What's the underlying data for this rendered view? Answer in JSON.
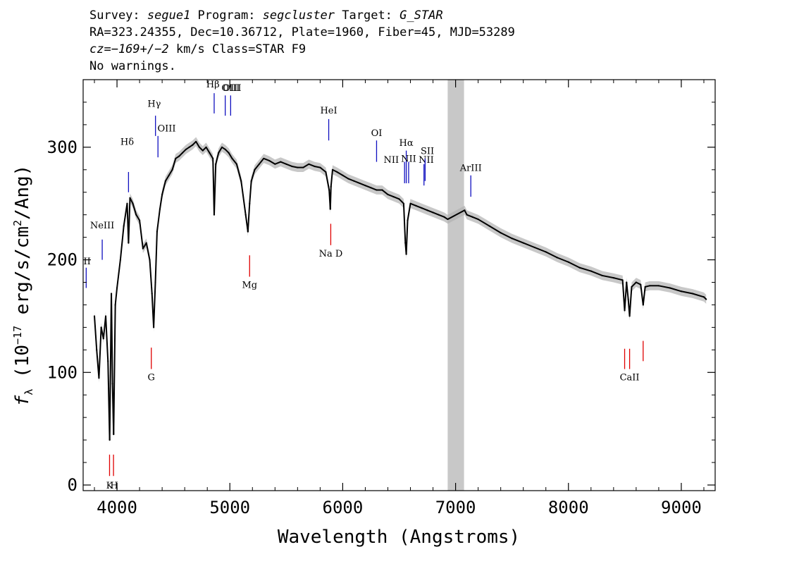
{
  "header": {
    "line1": {
      "survey_label": "Survey: ",
      "survey": "segue1",
      "program_label": " Program: ",
      "program": "segcluster",
      "target_label": " Target: ",
      "target": "G_STAR"
    },
    "line2": "RA=323.24355, Dec=10.36712, Plate=1960, Fiber=45, MJD=53289",
    "line3": {
      "cz": "cz=−169+/−2",
      "rest": " km/s Class=STAR F9"
    },
    "line4": "No warnings."
  },
  "chart_data": {
    "type": "line",
    "title": "",
    "xlabel": "Wavelength (Angstroms)",
    "ylabel": "f_λ (10^-17 erg/s/cm^2/Ang)",
    "ylabel_parts": {
      "f": "f",
      "sub": "λ",
      "pre": " (10",
      "exp1": "−17",
      "mid": " erg/s/cm",
      "exp2": "2",
      "post": "/Ang)"
    },
    "xlim": [
      3700,
      9300
    ],
    "ylim": [
      -5,
      360
    ],
    "xticks": [
      4000,
      5000,
      6000,
      7000,
      8000,
      9000
    ],
    "yticks": [
      0,
      100,
      200,
      300
    ],
    "masked_region": [
      6930,
      7075
    ],
    "colors": {
      "flux": "#000000",
      "error": "#b0b0b0",
      "mask": "#c8c8c8",
      "emission": "#1010c0",
      "absorption": "#e00000"
    },
    "series": [
      {
        "x": [
          3800,
          3820,
          3840,
          3860,
          3880,
          3900,
          3920,
          3935,
          3950,
          3960,
          3970,
          3985,
          4000,
          4030,
          4060,
          4090,
          4102,
          4115,
          4140,
          4170,
          4200,
          4230,
          4260,
          4290,
          4310,
          4325,
          4340,
          4355,
          4380,
          4400,
          4430,
          4460,
          4490,
          4520,
          4550,
          4580,
          4610,
          4640,
          4670,
          4700,
          4730,
          4760,
          4790,
          4820,
          4850,
          4861,
          4875,
          4900,
          4930,
          4960,
          4990,
          5020,
          5060,
          5100,
          5140,
          5160,
          5175,
          5190,
          5220,
          5260,
          5300,
          5350,
          5400,
          5450,
          5500,
          5550,
          5600,
          5650,
          5700,
          5750,
          5800,
          5850,
          5880,
          5890,
          5896,
          5910,
          5950,
          6000,
          6050,
          6100,
          6150,
          6200,
          6250,
          6300,
          6350,
          6400,
          6450,
          6500,
          6540,
          6555,
          6563,
          6575,
          6600,
          6650,
          6700,
          6750,
          6800,
          6850,
          6900,
          6930,
          7080,
          7100,
          7150,
          7200,
          7300,
          7400,
          7500,
          7600,
          7700,
          7800,
          7900,
          8000,
          8100,
          8200,
          8300,
          8400,
          8480,
          8498,
          8515,
          8530,
          8542,
          8560,
          8600,
          8640,
          8662,
          8680,
          8720,
          8800,
          8900,
          9000,
          9100,
          9200,
          9220
        ],
        "y": [
          150,
          120,
          95,
          140,
          130,
          150,
          110,
          40,
          170,
          90,
          45,
          160,
          175,
          200,
          230,
          250,
          215,
          255,
          250,
          240,
          235,
          210,
          215,
          200,
          170,
          140,
          180,
          225,
          245,
          258,
          270,
          275,
          280,
          290,
          292,
          295,
          298,
          300,
          302,
          305,
          300,
          297,
          300,
          295,
          290,
          240,
          285,
          295,
          300,
          298,
          295,
          290,
          285,
          270,
          240,
          225,
          250,
          270,
          280,
          285,
          290,
          288,
          285,
          287,
          285,
          283,
          282,
          282,
          285,
          283,
          282,
          278,
          262,
          245,
          265,
          280,
          278,
          275,
          272,
          270,
          268,
          266,
          264,
          262,
          262,
          258,
          256,
          254,
          250,
          215,
          205,
          235,
          250,
          248,
          246,
          244,
          242,
          240,
          238,
          236,
          244,
          240,
          238,
          236,
          230,
          224,
          219,
          215,
          211,
          207,
          202,
          198,
          193,
          190,
          186,
          184,
          182,
          155,
          180,
          165,
          150,
          176,
          180,
          178,
          160,
          176,
          177,
          177,
          175,
          172,
          170,
          167,
          165
        ]
      }
    ],
    "emission_lines": [
      {
        "label": "II",
        "x": 3727,
        "label_x": 3735,
        "ytop": 193,
        "ybot": 175,
        "label_y": 196
      },
      {
        "label": "NeIII",
        "x": 3869,
        "label_x": 3869,
        "ytop": 218,
        "ybot": 200,
        "label_y": 228
      },
      {
        "label": "Hδ",
        "x": 4102,
        "label_x": 4090,
        "ytop": 278,
        "ybot": 260,
        "label_y": 302
      },
      {
        "label": "Hγ",
        "x": 4341,
        "label_x": 4330,
        "ytop": 328,
        "ybot": 310,
        "label_y": 336
      },
      {
        "label": "OIII",
        "x": 4363,
        "label_x": 4440,
        "ytop": 310,
        "ybot": 291,
        "label_y": 314
      },
      {
        "label": "Hβ",
        "x": 4861,
        "label_x": 4850,
        "ytop": 348,
        "ybot": 330,
        "label_y": 353
      },
      {
        "label": "OIII",
        "x": 4959,
        "label_x": 5020,
        "ytop": 346,
        "ybot": 328,
        "label_y": 350
      },
      {
        "label": "OIII",
        "x": 5007,
        "label_x": 5007,
        "ytop": 346,
        "ybot": 328,
        "label_y": 350
      },
      {
        "label": "HeI",
        "x": 5876,
        "label_x": 5876,
        "ytop": 325,
        "ybot": 306,
        "label_y": 330
      },
      {
        "label": "OI",
        "x": 6300,
        "label_x": 6300,
        "ytop": 306,
        "ybot": 287,
        "label_y": 310
      },
      {
        "label": "NII",
        "x": 6548,
        "label_x": 6430,
        "ytop": 287,
        "ybot": 268,
        "label_y": 286
      },
      {
        "label": "Hα",
        "x": 6563,
        "label_x": 6563,
        "ytop": 297,
        "ybot": 268,
        "label_y": 301
      },
      {
        "label": "NII",
        "x": 6584,
        "label_x": 6584,
        "ytop": 287,
        "ybot": 268,
        "label_y": 287
      },
      {
        "label": "NII",
        "x": 6720,
        "label_x": 6740,
        "ytop": 285,
        "ybot": 266,
        "label_y": 286
      },
      {
        "label": "SII",
        "x": 6730,
        "label_x": 6750,
        "ytop": 290,
        "ybot": 270,
        "label_y": 294
      },
      {
        "label": "ArIII",
        "x": 7135,
        "label_x": 7135,
        "ytop": 275,
        "ybot": 256,
        "label_y": 279
      }
    ],
    "absorption_lines": [
      {
        "label": "K",
        "x": 3934,
        "label_x": 3934,
        "ytop": 27,
        "ybot": 8,
        "label_y": -3
      },
      {
        "label": "H",
        "x": 3969,
        "label_x": 3975,
        "ytop": 27,
        "ybot": 8,
        "label_y": -3
      },
      {
        "label": "G",
        "x": 4304,
        "label_x": 4304,
        "ytop": 122,
        "ybot": 103,
        "label_y": 93
      },
      {
        "label": "Mg",
        "x": 5175,
        "label_x": 5175,
        "ytop": 204,
        "ybot": 185,
        "label_y": 175
      },
      {
        "label": "Na D",
        "x": 5894,
        "label_x": 5894,
        "ytop": 232,
        "ybot": 213,
        "label_y": 203
      },
      {
        "label": "CaII",
        "x": 8498,
        "label_x": 8542,
        "ytop": 121,
        "ybot": 103,
        "label_y": 93
      },
      {
        "label": "",
        "x": 8542,
        "label_x": 8542,
        "ytop": 121,
        "ybot": 103,
        "label_y": 93
      },
      {
        "label": "",
        "x": 8662,
        "label_x": 8662,
        "ytop": 128,
        "ybot": 110,
        "label_y": 93
      }
    ]
  }
}
